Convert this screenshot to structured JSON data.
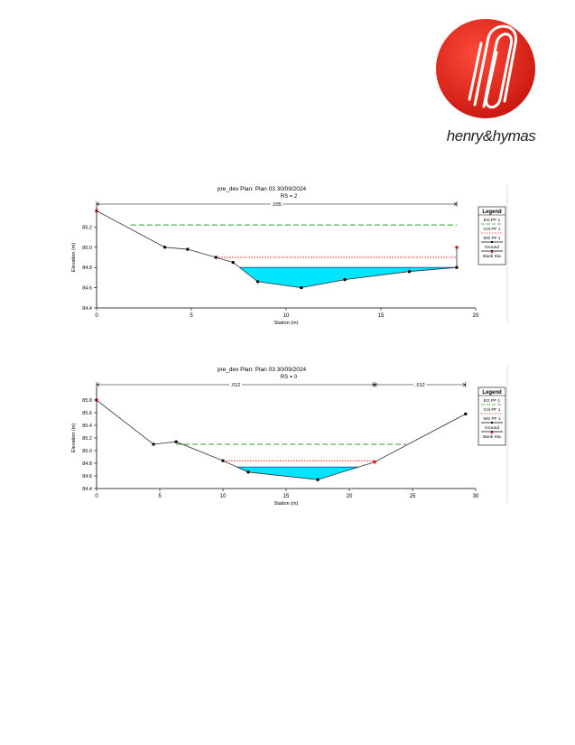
{
  "logo": {
    "wordmark": "henry&hymas",
    "brand_color": "#e2231a"
  },
  "colors": {
    "water": "#00e5ff",
    "ground": "#000000",
    "eg": "#2e9e2e",
    "crit": "#e32222",
    "bank": "#e32222"
  },
  "chart_data": [
    {
      "type": "line",
      "title": "pre_dev       Plan: Plan 03     30/09/2024",
      "subtitle": "RS = 2",
      "xlabel": "Station (m)",
      "ylabel": "Elevation (m)",
      "xlim": [
        0,
        20
      ],
      "ylim": [
        84.4,
        85.4
      ],
      "xticks": [
        "0",
        "5",
        "10",
        "15",
        "20"
      ],
      "yticks": [
        "84.4",
        "84.6",
        "84.8",
        "85.0",
        "85.2"
      ],
      "manning": [
        {
          "label": ".035",
          "from": 0,
          "to": 19
        }
      ],
      "ground": {
        "x": [
          0,
          3.6,
          4.8,
          6.3,
          7.2,
          8.5,
          10.8,
          13.1,
          16.5,
          19
        ],
        "y": [
          85.36,
          85.0,
          84.98,
          84.9,
          84.85,
          84.66,
          84.6,
          84.68,
          84.76,
          84.8
        ]
      },
      "bank_sta": [
        {
          "x": 0,
          "y": 85.36
        },
        {
          "x": 19,
          "y": 85.0
        }
      ],
      "ws_elevation": 84.8,
      "crit_elevation": 84.9,
      "eg_elevation": 85.22,
      "crit_span": [
        6.3,
        19
      ],
      "eg_span": [
        1.8,
        19
      ],
      "legend": {
        "title": "Legend",
        "items": [
          "EG PF 1",
          "Crit PF 1",
          "WS PF 1",
          "Ground",
          "Bank Sta"
        ]
      },
      "grid": false,
      "legend_position": "right"
    },
    {
      "type": "line",
      "title": "pre_dev       Plan: Plan 03     30/09/2024",
      "subtitle": "RS = 0",
      "xlabel": "Station (m)",
      "ylabel": "Elevation (m)",
      "xlim": [
        0,
        30
      ],
      "ylim": [
        84.4,
        86.0
      ],
      "xticks": [
        "0",
        "5",
        "10",
        "15",
        "20",
        "25",
        "30"
      ],
      "yticks": [
        "84.4",
        "84.6",
        "84.8",
        "85.0",
        "85.2",
        "85.4",
        "85.6",
        "85.8"
      ],
      "manning": [
        {
          "label": ".012",
          "from": 0,
          "to": 22
        },
        {
          "label": ".012",
          "from": 22,
          "to": 29.2
        }
      ],
      "ground": {
        "x": [
          0,
          4.5,
          6.3,
          10,
          12,
          17.5,
          22,
          29.2
        ],
        "y": [
          85.8,
          85.1,
          85.14,
          84.84,
          84.66,
          84.54,
          84.82,
          85.58
        ]
      },
      "bank_sta": [
        {
          "x": 0,
          "y": 85.8
        },
        {
          "x": 22,
          "y": 84.82
        }
      ],
      "ws_elevation": 84.74,
      "crit_elevation": 84.84,
      "eg_elevation": 85.1,
      "crit_span": [
        10,
        22
      ],
      "eg_span": [
        6.3,
        24.5
      ],
      "legend": {
        "title": "Legend",
        "items": [
          "EG PF 1",
          "Crit PF 1",
          "WS PF 1",
          "Ground",
          "Bank Sta"
        ]
      },
      "grid": false,
      "legend_position": "right"
    }
  ]
}
